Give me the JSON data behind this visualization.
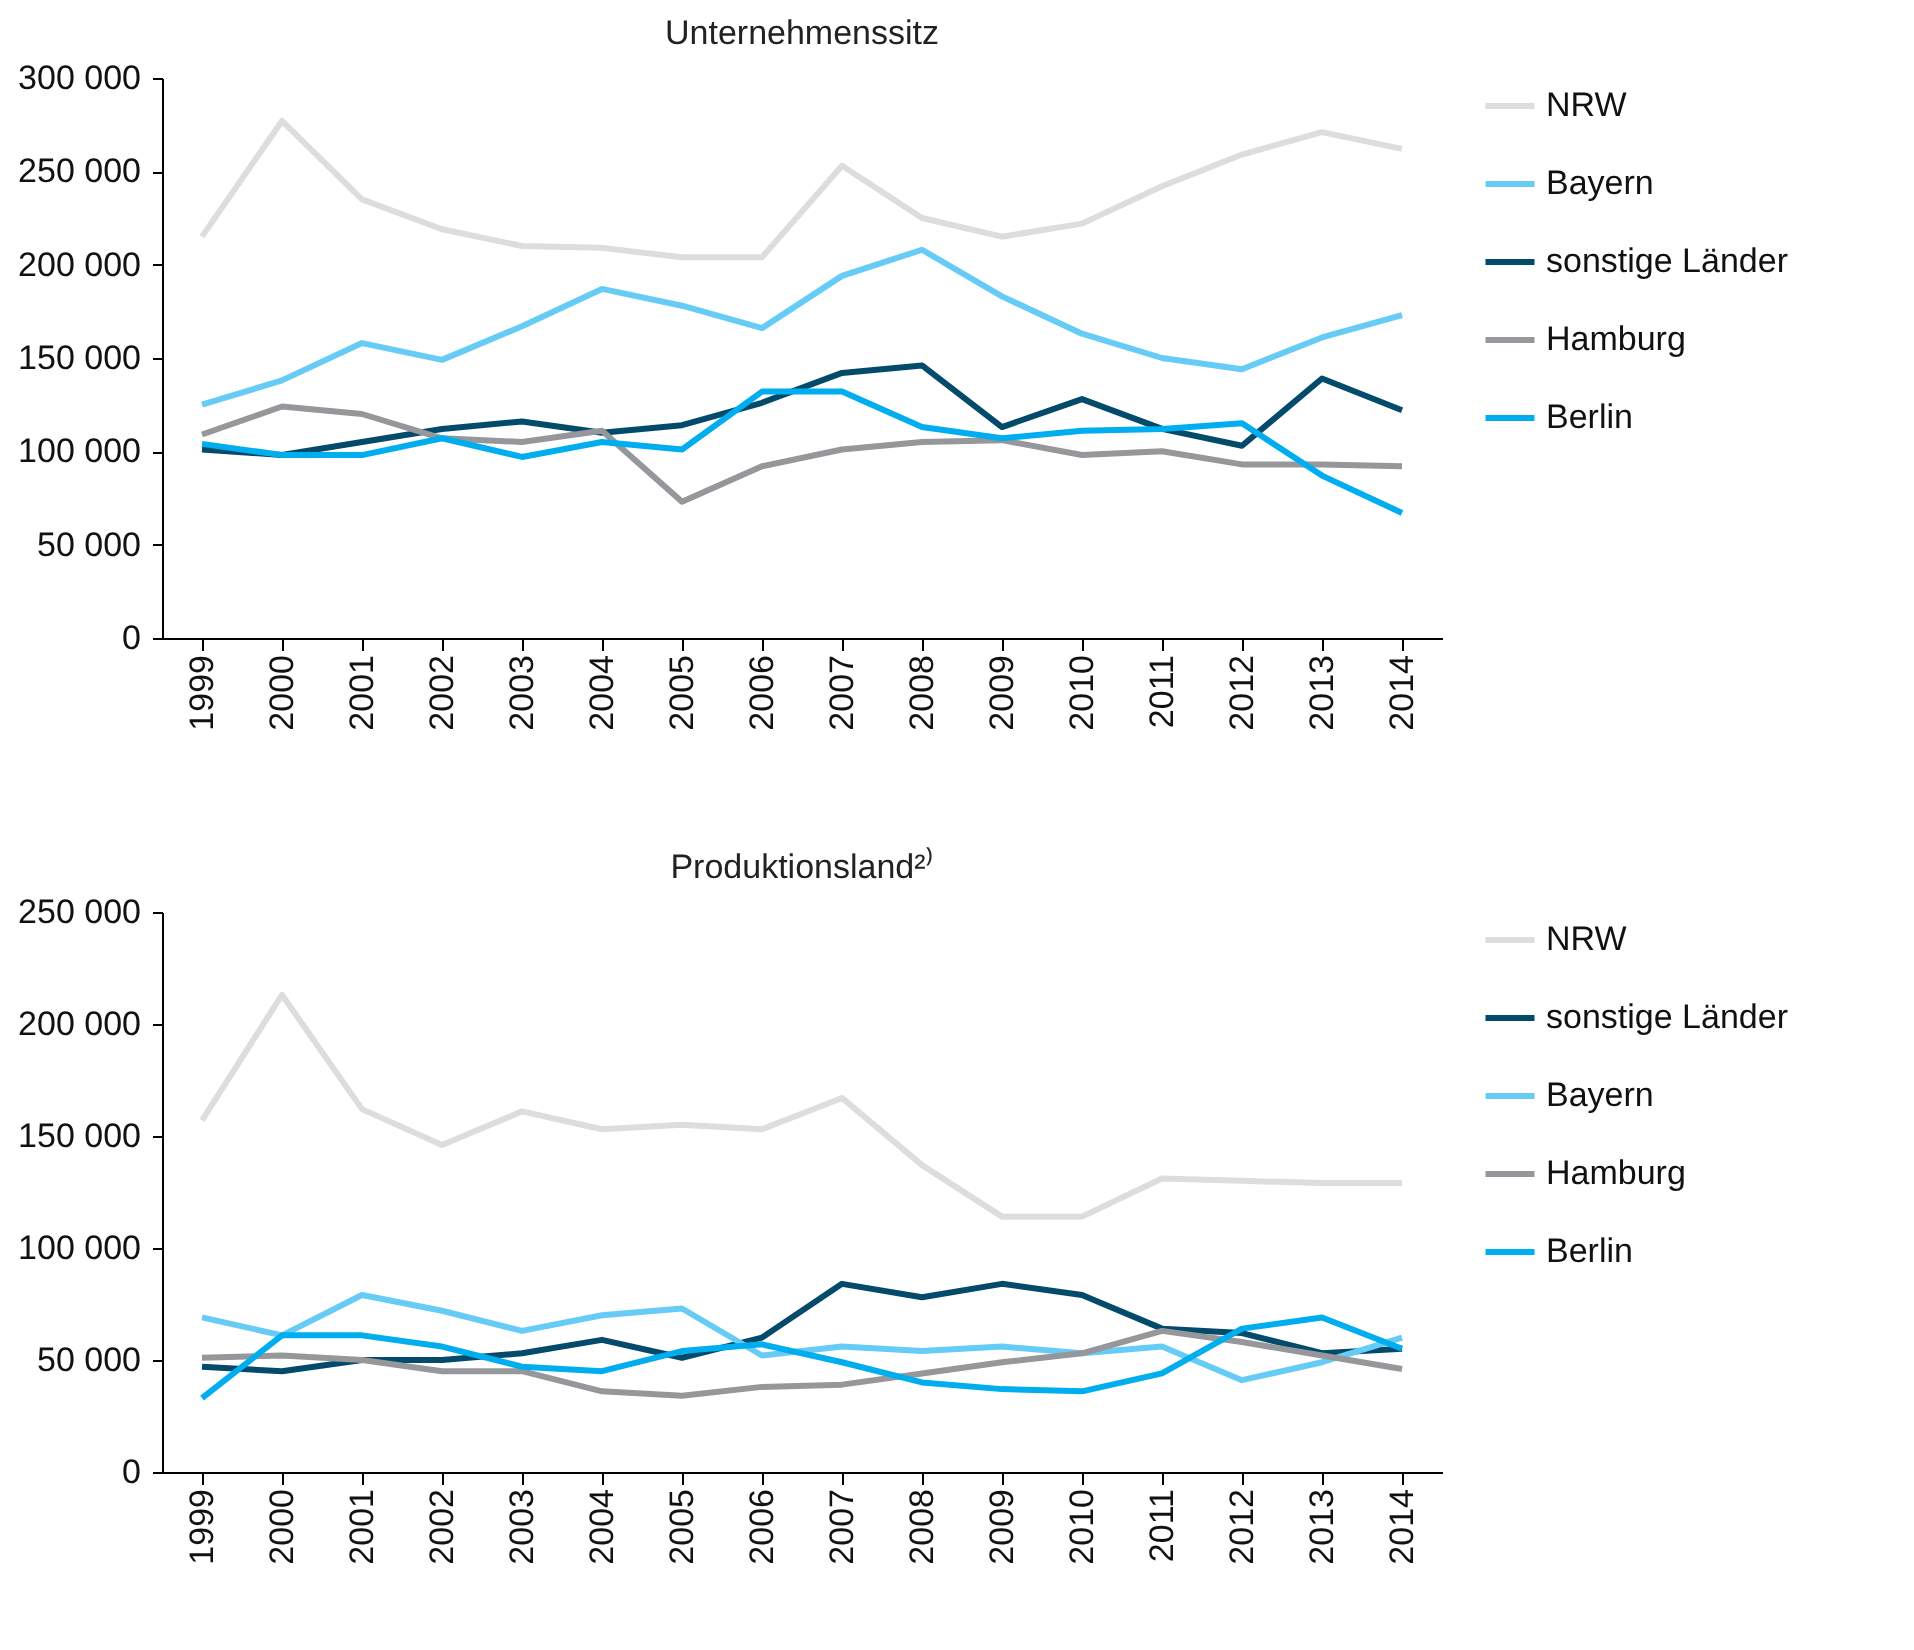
{
  "chart_data": [
    {
      "type": "line",
      "title": "Unternehmenssitz",
      "categories": [
        "1999",
        "2000",
        "2001",
        "2002",
        "2003",
        "2004",
        "2005",
        "2006",
        "2007",
        "2008",
        "2009",
        "2010",
        "2011",
        "2012",
        "2013",
        "2014"
      ],
      "series": [
        {
          "name": "NRW",
          "color": "#dcdddf",
          "values": [
            215000,
            277000,
            235000,
            219000,
            210000,
            209000,
            204000,
            204000,
            253000,
            225000,
            215000,
            222000,
            242000,
            259000,
            271000,
            262000
          ]
        },
        {
          "name": "Bayern",
          "color": "#66ccf5",
          "values": [
            125000,
            138000,
            158000,
            149000,
            167000,
            187000,
            178000,
            166000,
            194000,
            208000,
            183000,
            163000,
            150000,
            144000,
            161000,
            173000
          ]
        },
        {
          "name": "sonstige Länder",
          "color": "#034a6b",
          "values": [
            101000,
            98000,
            105000,
            112000,
            116000,
            110000,
            114000,
            126000,
            142000,
            146000,
            113000,
            128000,
            112000,
            103000,
            139000,
            122000
          ]
        },
        {
          "name": "Hamburg",
          "color": "#96979a",
          "values": [
            109000,
            124000,
            120000,
            107000,
            105000,
            111000,
            73000,
            92000,
            101000,
            105000,
            106000,
            98000,
            100000,
            93000,
            93000,
            92000
          ]
        },
        {
          "name": "Berlin",
          "color": "#00aeef",
          "values": [
            104000,
            98000,
            98000,
            107000,
            97000,
            105000,
            101000,
            132000,
            132000,
            113000,
            107000,
            111000,
            112000,
            115000,
            87000,
            67000
          ]
        }
      ],
      "ylim": [
        0,
        300000
      ],
      "yticks": [
        0,
        {
          "value": 50000,
          "label": "50 000"
        },
        {
          "value": 100000,
          "label": "100 000"
        },
        {
          "value": 150000,
          "label": "150 000"
        },
        {
          "value": 200000,
          "label": "200 000"
        },
        {
          "value": 250000,
          "label": "250 000"
        },
        {
          "value": 300000,
          "label": "300 000"
        }
      ],
      "legend": "right"
    },
    {
      "type": "line",
      "title": "Produktionsland²⁾",
      "categories": [
        "1999",
        "2000",
        "2001",
        "2002",
        "2003",
        "2004",
        "2005",
        "2006",
        "2007",
        "2008",
        "2009",
        "2010",
        "2011",
        "2012",
        "2013",
        "2014"
      ],
      "series": [
        {
          "name": "NRW",
          "color": "#dcdddf",
          "values": [
            157000,
            213000,
            162000,
            146000,
            161000,
            153000,
            155000,
            153000,
            167000,
            137000,
            114000,
            114000,
            131000,
            130000,
            129000,
            129000
          ]
        },
        {
          "name": "sonstige Länder",
          "color": "#034a6b",
          "values": [
            47000,
            45000,
            50000,
            50000,
            53000,
            59000,
            51000,
            60000,
            84000,
            78000,
            84000,
            79000,
            64000,
            62000,
            53000,
            55000
          ]
        },
        {
          "name": "Bayern",
          "color": "#66ccf5",
          "values": [
            69000,
            61000,
            79000,
            72000,
            63000,
            70000,
            73000,
            52000,
            56000,
            54000,
            56000,
            53000,
            56000,
            41000,
            49000,
            60000
          ]
        },
        {
          "name": "Hamburg",
          "color": "#96979a",
          "values": [
            51000,
            52000,
            50000,
            45000,
            45000,
            36000,
            34000,
            38000,
            39000,
            44000,
            49000,
            53000,
            63000,
            58000,
            52000,
            46000
          ]
        },
        {
          "name": "Berlin",
          "color": "#00aeef",
          "values": [
            33000,
            61000,
            61000,
            56000,
            47000,
            45000,
            54000,
            57000,
            49000,
            40000,
            37000,
            36000,
            44000,
            64000,
            69000,
            55000
          ]
        }
      ],
      "ylim": [
        0,
        250000
      ],
      "yticks": [
        0,
        {
          "value": 50000,
          "label": "50 000"
        },
        {
          "value": 100000,
          "label": "100 000"
        },
        {
          "value": 150000,
          "label": "150 000"
        },
        {
          "value": 200000,
          "label": "200 000"
        },
        {
          "value": 250000,
          "label": "250 000"
        }
      ],
      "legend": "right"
    }
  ]
}
